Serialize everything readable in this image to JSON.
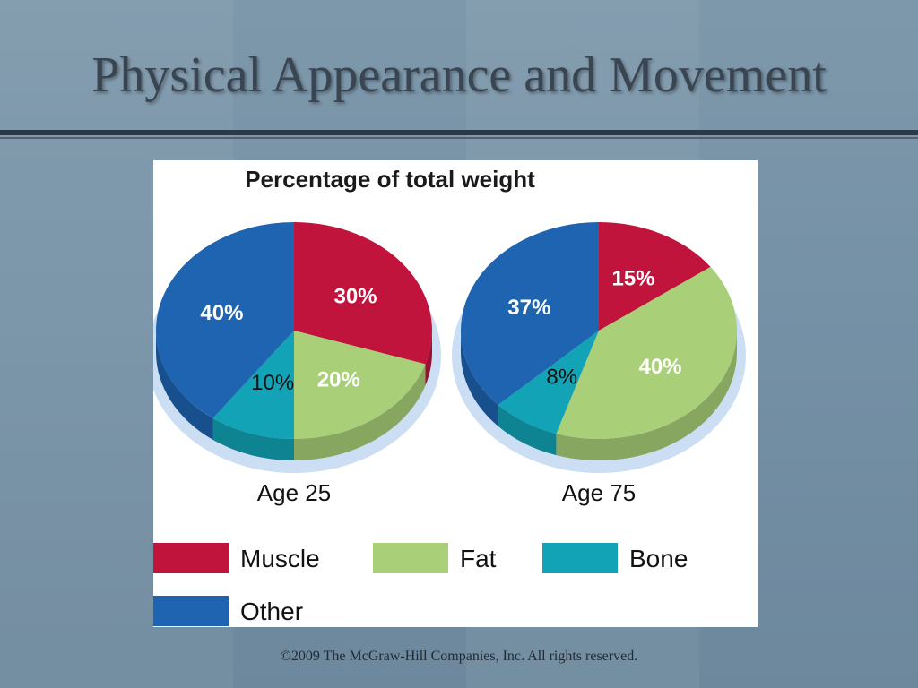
{
  "slide": {
    "title": "Physical Appearance and Movement",
    "footer": "©2009 The McGraw-Hill Companies, Inc. All rights reserved."
  },
  "colors": {
    "Muscle": "#c0143c",
    "Fat": "#a9cf78",
    "Bone": "#12a4b6",
    "Other": "#1e64b0"
  },
  "chart_data": {
    "type": "pie",
    "title": "Percentage of total weight",
    "legend": {
      "placement": "bottom",
      "entries": [
        "Muscle",
        "Fat",
        "Bone",
        "Other"
      ]
    },
    "charts": [
      {
        "label": "Age 25",
        "slices": [
          {
            "name": "Muscle",
            "value": 30,
            "label": "30%"
          },
          {
            "name": "Fat",
            "value": 20,
            "label": "20%"
          },
          {
            "name": "Bone",
            "value": 10,
            "label": "10%"
          },
          {
            "name": "Other",
            "value": 40,
            "label": "40%"
          }
        ]
      },
      {
        "label": "Age 75",
        "slices": [
          {
            "name": "Muscle",
            "value": 15,
            "label": "15%"
          },
          {
            "name": "Fat",
            "value": 40,
            "label": "40%"
          },
          {
            "name": "Bone",
            "value": 8,
            "label": "8%"
          },
          {
            "name": "Other",
            "value": 37,
            "label": "37%"
          }
        ]
      }
    ]
  }
}
